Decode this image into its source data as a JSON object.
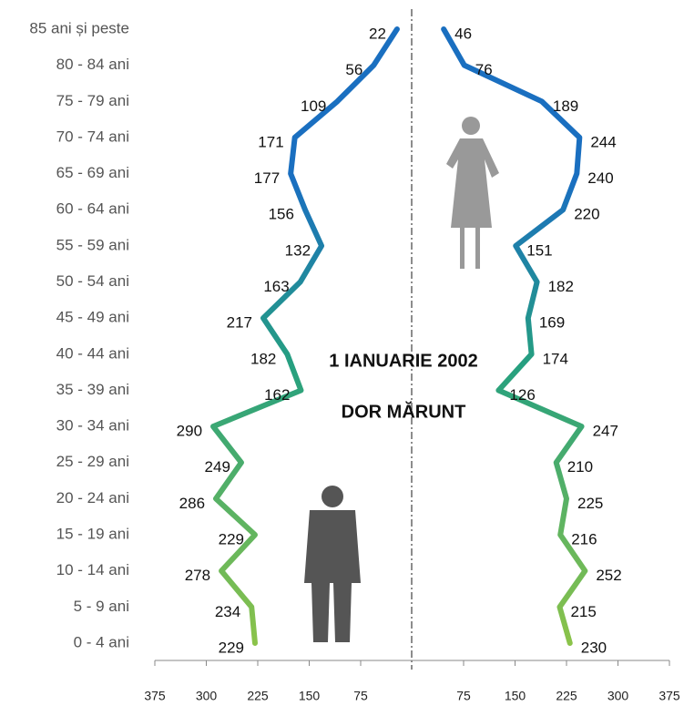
{
  "chart_data": {
    "type": "line",
    "annotations": [
      "1 IANUARIE 2002",
      "DOR MĂRUNT"
    ],
    "categories": [
      "0 - 4 ani",
      "5 - 9 ani",
      "10 - 14 ani",
      "15 - 19 ani",
      "20 - 24 ani",
      "25 - 29 ani",
      "30 - 34 ani",
      "35 - 39 ani",
      "40 - 44 ani",
      "45 - 49 ani",
      "50 - 54 ani",
      "55 - 59 ani",
      "60 - 64 ani",
      "65 - 69 ani",
      "70 - 74 ani",
      "75 - 79 ani",
      "80 - 84 ani",
      "85 ani și peste"
    ],
    "series": [
      {
        "side": "left",
        "values": [
          229,
          234,
          278,
          229,
          286,
          249,
          290,
          162,
          182,
          217,
          163,
          132,
          156,
          177,
          171,
          109,
          56,
          22
        ]
      },
      {
        "side": "right",
        "values": [
          230,
          215,
          252,
          216,
          225,
          210,
          247,
          126,
          174,
          169,
          182,
          151,
          220,
          240,
          244,
          189,
          76,
          46
        ]
      }
    ],
    "gradient": [
      "#8bc34a",
      "#26a07f",
      "#1a6fc0"
    ],
    "xlim": [
      -375,
      375
    ],
    "xticks": [
      {
        "value": -375,
        "label": "375"
      },
      {
        "value": -300,
        "label": "300"
      },
      {
        "value": -225,
        "label": "225"
      },
      {
        "value": -150,
        "label": "150"
      },
      {
        "value": -75,
        "label": "75"
      },
      75,
      150,
      225,
      300,
      375
    ]
  }
}
